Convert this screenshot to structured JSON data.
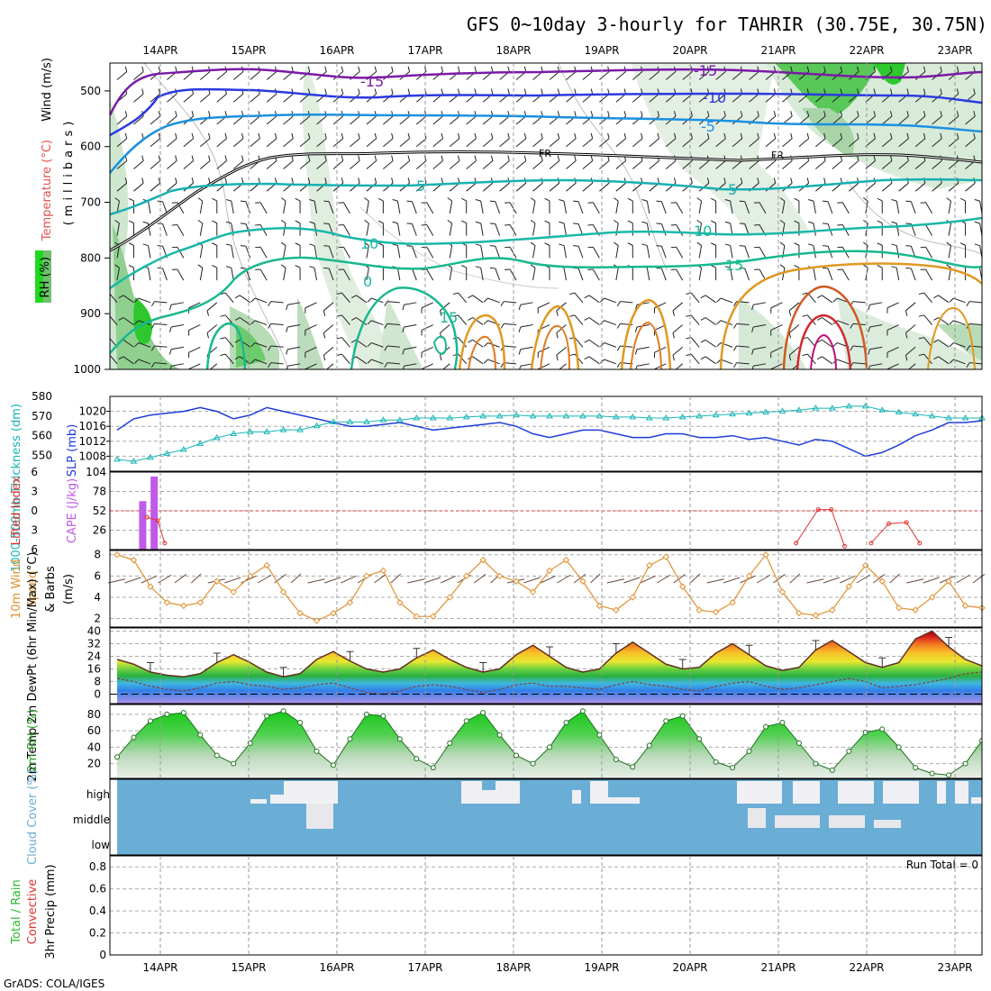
{
  "title": "GFS 0~10day 3-hourly for TAHRIR (30.75E, 30.75N)",
  "credit": "GrADS: COLA/IGES",
  "date_labels": [
    "14APR",
    "15APR",
    "16APR",
    "17APR",
    "18APR",
    "19APR",
    "20APR",
    "21APR",
    "22APR",
    "23APR"
  ],
  "colors": {
    "slp": "#1e3cd8",
    "thick": "#17b5b5",
    "cape": "#c05ae8",
    "li": "#e03030",
    "wind": "#e09030",
    "rh": "#2ab82a",
    "cloud": "#6aaed6",
    "hum": "#30a030"
  },
  "chart_data": [
    {
      "type": "area",
      "name": "upper-air",
      "ylabel_wind": "Wind (m/s)",
      "ylabel_temp": "Temperature (°C)",
      "ylabel_rh": "RH (%)",
      "ylabel_units": "(millibars)",
      "y_ticks": [
        "500",
        "600",
        "700",
        "800",
        "900",
        "1000"
      ],
      "ylim": [
        1000,
        450
      ],
      "contour_labels": [
        "-15",
        "-15",
        "-10",
        "-5",
        "FR",
        "FR",
        "5",
        "5",
        "10",
        "10",
        "0",
        "15",
        "15"
      ]
    },
    {
      "type": "line",
      "name": "slp-thickness",
      "ylabel_left": "1000-500mb Thickness (dm)",
      "ylabel_right": "SLP (mb)",
      "left_ticks": [
        "580",
        "570",
        "560",
        "550"
      ],
      "right_ticks": [
        "1020",
        "1016",
        "1012",
        "1008"
      ],
      "series": [
        {
          "name": "SLP",
          "values": [
            1015,
            1018,
            1019,
            1019.5,
            1020,
            1021,
            1020,
            1018,
            1019,
            1021,
            1020,
            1019,
            1018,
            1017,
            1016,
            1016,
            1016.5,
            1017,
            1016,
            1015,
            1015.5,
            1016,
            1016.5,
            1017,
            1016,
            1014,
            1013,
            1014,
            1015,
            1015,
            1014,
            1013,
            1013,
            1014,
            1014,
            1013,
            1013,
            1013.5,
            1012.5,
            1013,
            1012,
            1011,
            1012.5,
            1012,
            1010,
            1008,
            1009,
            1011,
            1013.5,
            1015,
            1017,
            1017,
            1017.5
          ]
        },
        {
          "name": "Thickness",
          "values": [
            548,
            547,
            549,
            551,
            553,
            556,
            559,
            561,
            562,
            562,
            563,
            563,
            565,
            567,
            567,
            567,
            568,
            568,
            569,
            569,
            569,
            569.5,
            570,
            570,
            570.5,
            570,
            570,
            570,
            570,
            570,
            569.5,
            569.5,
            569,
            569,
            569.5,
            570,
            570.5,
            571,
            571.5,
            572,
            572.5,
            573,
            574,
            574,
            575,
            575,
            573,
            572,
            571,
            570,
            569,
            569,
            569
          ]
        }
      ]
    },
    {
      "type": "bar",
      "name": "cape-li",
      "ylabel_left": "Lifted Index",
      "ylabel_right": "CAPE (J/kg)",
      "left_ticks": [
        "6",
        "3",
        "0",
        "3",
        "6"
      ],
      "right_ticks": [
        "104",
        "78",
        "52",
        "26"
      ],
      "cape_bars": [
        {
          "day": 13.8,
          "value": 65
        },
        {
          "day": 13.93,
          "value": 98
        }
      ],
      "li_segments": [
        {
          "name": "seg1",
          "x": [
            13.85,
            13.97,
            14.05
          ],
          "y": [
            1,
            1.5,
            5
          ]
        },
        {
          "name": "seg2",
          "x": [
            21.2,
            21.45,
            21.6,
            21.75
          ],
          "y": [
            5,
            -0.2,
            -0.2,
            5.5
          ]
        },
        {
          "name": "seg3",
          "x": [
            22.05,
            22.25,
            22.45,
            22.6
          ],
          "y": [
            5,
            2,
            1.8,
            5
          ]
        }
      ]
    },
    {
      "type": "line",
      "name": "wind10m",
      "ylabel": "10m Wind Speed (m/s) & Barbs",
      "ylabel_lines": [
        "10m Wind",
        "Speed",
        "& Barbs",
        "(m/s)"
      ],
      "y_ticks": [
        "8",
        "6",
        "4",
        "2"
      ],
      "ylim": [
        1.2,
        8.4
      ],
      "values": [
        8,
        7.5,
        5,
        3.5,
        3.2,
        3.5,
        5.5,
        4.5,
        6,
        7,
        4.5,
        2.5,
        1.8,
        2.5,
        3.5,
        6,
        6.5,
        3.5,
        2.2,
        2.2,
        4,
        6,
        7.5,
        6,
        5.5,
        4.5,
        6.5,
        7.5,
        5.5,
        3.2,
        2.8,
        4,
        7,
        7.8,
        5,
        2.8,
        2.6,
        3.5,
        6,
        8,
        4.5,
        2.5,
        2.3,
        2.8,
        5,
        7,
        5.5,
        3,
        2.8,
        4,
        5.5,
        3.2,
        3
      ]
    },
    {
      "type": "area",
      "name": "temperature",
      "ylabel": "2m Temp 2m DewPt (6hr Min/Max) (°C)",
      "y_ticks": [
        "40",
        "32",
        "24",
        "16",
        "8",
        "0"
      ],
      "ylim": [
        -6,
        42
      ],
      "temp": [
        22,
        19,
        14,
        12,
        11,
        13,
        20,
        25,
        20,
        14,
        11,
        13,
        22,
        27,
        21,
        16,
        14,
        16,
        23,
        28,
        22,
        17,
        14,
        16,
        25,
        31,
        24,
        17,
        14,
        16,
        26,
        33,
        26,
        19,
        16,
        17,
        26,
        32,
        25,
        18,
        15,
        17,
        28,
        34,
        27,
        20,
        17,
        20,
        35,
        40,
        30,
        22,
        18
      ],
      "dewpoint": [
        10,
        8,
        5,
        3,
        2,
        4,
        7,
        8,
        6,
        5,
        3,
        4,
        6,
        7,
        4,
        1,
        0,
        2,
        5,
        6,
        5,
        3,
        1,
        3,
        6,
        7,
        5,
        5,
        4,
        3,
        6,
        8,
        6,
        5,
        3,
        2,
        5,
        7,
        8,
        5,
        3,
        4,
        6,
        8,
        10,
        8,
        4,
        5,
        6,
        8,
        10,
        13,
        14
      ]
    },
    {
      "type": "area",
      "name": "rh2m",
      "ylabel": "2m RH (%)",
      "y_ticks": [
        "80",
        "60",
        "40",
        "20"
      ],
      "ylim": [
        2,
        92
      ],
      "values": [
        28,
        52,
        72,
        80,
        82,
        55,
        30,
        20,
        45,
        78,
        84,
        70,
        35,
        18,
        50,
        80,
        78,
        50,
        26,
        15,
        45,
        72,
        82,
        55,
        30,
        20,
        40,
        70,
        84,
        55,
        25,
        16,
        42,
        72,
        78,
        50,
        22,
        15,
        35,
        65,
        70,
        45,
        20,
        12,
        35,
        58,
        62,
        40,
        15,
        8,
        6,
        20,
        48
      ]
    },
    {
      "type": "heatmap",
      "name": "cloud-cover",
      "ylabel": "Cloud Cover (%)",
      "row_labels": [
        "high",
        "middle",
        "low"
      ]
    },
    {
      "type": "bar",
      "name": "precip",
      "ylabel_left": "Total / Rain",
      "ylabel_left2": "Convective",
      "ylabel_units": "3hr Precip (mm)",
      "y_ticks": [
        "0.8",
        "0.6",
        "0.4",
        "0.2",
        "0"
      ],
      "ylim": [
        0,
        0.9
      ],
      "run_total": "Run Total = 0",
      "values": []
    }
  ]
}
